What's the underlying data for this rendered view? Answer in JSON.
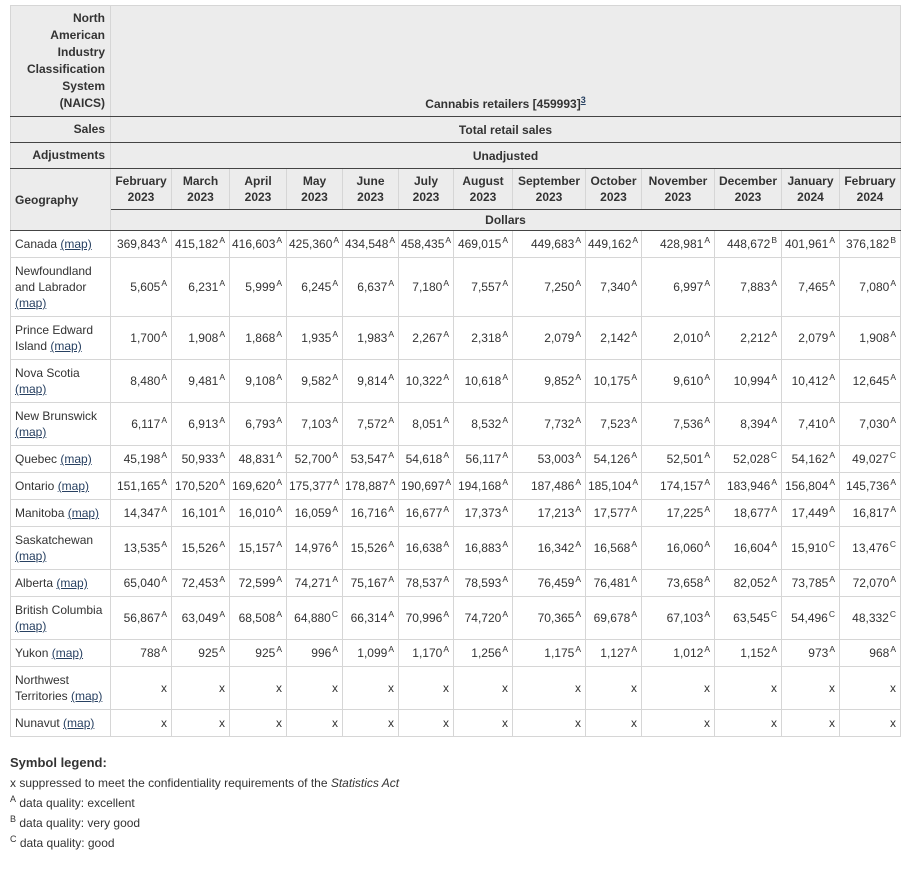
{
  "header": {
    "naics_label": "North American Industry Classification System (NAICS)",
    "naics_value": "Cannabis retailers [459993]",
    "naics_footnote": "3",
    "sales_label": "Sales",
    "sales_value": "Total retail sales",
    "adjustments_label": "Adjustments",
    "adjustments_value": "Unadjusted",
    "geography_label": "Geography",
    "unit_label": "Dollars",
    "columns": [
      {
        "month": "February",
        "year": "2023"
      },
      {
        "month": "March",
        "year": "2023"
      },
      {
        "month": "April",
        "year": "2023"
      },
      {
        "month": "May",
        "year": "2023"
      },
      {
        "month": "June",
        "year": "2023"
      },
      {
        "month": "July",
        "year": "2023"
      },
      {
        "month": "August",
        "year": "2023"
      },
      {
        "month": "September",
        "year": "2023"
      },
      {
        "month": "October",
        "year": "2023"
      },
      {
        "month": "November",
        "year": "2023"
      },
      {
        "month": "December",
        "year": "2023"
      },
      {
        "month": "January",
        "year": "2024"
      },
      {
        "month": "February",
        "year": "2024"
      }
    ]
  },
  "map_link_label": "(map)",
  "rows": [
    {
      "geo": "Canada",
      "cells": [
        [
          "369,843",
          "A"
        ],
        [
          "415,182",
          "A"
        ],
        [
          "416,603",
          "A"
        ],
        [
          "425,360",
          "A"
        ],
        [
          "434,548",
          "A"
        ],
        [
          "458,435",
          "A"
        ],
        [
          "469,015",
          "A"
        ],
        [
          "449,683",
          "A"
        ],
        [
          "449,162",
          "A"
        ],
        [
          "428,981",
          "A"
        ],
        [
          "448,672",
          "B"
        ],
        [
          "401,961",
          "A"
        ],
        [
          "376,182",
          "B"
        ]
      ]
    },
    {
      "geo": "Newfoundland and Labrador",
      "cells": [
        [
          "5,605",
          "A"
        ],
        [
          "6,231",
          "A"
        ],
        [
          "5,999",
          "A"
        ],
        [
          "6,245",
          "A"
        ],
        [
          "6,637",
          "A"
        ],
        [
          "7,180",
          "A"
        ],
        [
          "7,557",
          "A"
        ],
        [
          "7,250",
          "A"
        ],
        [
          "7,340",
          "A"
        ],
        [
          "6,997",
          "A"
        ],
        [
          "7,883",
          "A"
        ],
        [
          "7,465",
          "A"
        ],
        [
          "7,080",
          "A"
        ]
      ]
    },
    {
      "geo": "Prince Edward Island",
      "cells": [
        [
          "1,700",
          "A"
        ],
        [
          "1,908",
          "A"
        ],
        [
          "1,868",
          "A"
        ],
        [
          "1,935",
          "A"
        ],
        [
          "1,983",
          "A"
        ],
        [
          "2,267",
          "A"
        ],
        [
          "2,318",
          "A"
        ],
        [
          "2,079",
          "A"
        ],
        [
          "2,142",
          "A"
        ],
        [
          "2,010",
          "A"
        ],
        [
          "2,212",
          "A"
        ],
        [
          "2,079",
          "A"
        ],
        [
          "1,908",
          "A"
        ]
      ]
    },
    {
      "geo": "Nova Scotia",
      "cells": [
        [
          "8,480",
          "A"
        ],
        [
          "9,481",
          "A"
        ],
        [
          "9,108",
          "A"
        ],
        [
          "9,582",
          "A"
        ],
        [
          "9,814",
          "A"
        ],
        [
          "10,322",
          "A"
        ],
        [
          "10,618",
          "A"
        ],
        [
          "9,852",
          "A"
        ],
        [
          "10,175",
          "A"
        ],
        [
          "9,610",
          "A"
        ],
        [
          "10,994",
          "A"
        ],
        [
          "10,412",
          "A"
        ],
        [
          "12,645",
          "A"
        ]
      ]
    },
    {
      "geo": "New Brunswick",
      "cells": [
        [
          "6,117",
          "A"
        ],
        [
          "6,913",
          "A"
        ],
        [
          "6,793",
          "A"
        ],
        [
          "7,103",
          "A"
        ],
        [
          "7,572",
          "A"
        ],
        [
          "8,051",
          "A"
        ],
        [
          "8,532",
          "A"
        ],
        [
          "7,732",
          "A"
        ],
        [
          "7,523",
          "A"
        ],
        [
          "7,536",
          "A"
        ],
        [
          "8,394",
          "A"
        ],
        [
          "7,410",
          "A"
        ],
        [
          "7,030",
          "A"
        ]
      ]
    },
    {
      "geo": "Quebec",
      "cells": [
        [
          "45,198",
          "A"
        ],
        [
          "50,933",
          "A"
        ],
        [
          "48,831",
          "A"
        ],
        [
          "52,700",
          "A"
        ],
        [
          "53,547",
          "A"
        ],
        [
          "54,618",
          "A"
        ],
        [
          "56,117",
          "A"
        ],
        [
          "53,003",
          "A"
        ],
        [
          "54,126",
          "A"
        ],
        [
          "52,501",
          "A"
        ],
        [
          "52,028",
          "C"
        ],
        [
          "54,162",
          "A"
        ],
        [
          "49,027",
          "C"
        ]
      ]
    },
    {
      "geo": "Ontario",
      "cells": [
        [
          "151,165",
          "A"
        ],
        [
          "170,520",
          "A"
        ],
        [
          "169,620",
          "A"
        ],
        [
          "175,377",
          "A"
        ],
        [
          "178,887",
          "A"
        ],
        [
          "190,697",
          "A"
        ],
        [
          "194,168",
          "A"
        ],
        [
          "187,486",
          "A"
        ],
        [
          "185,104",
          "A"
        ],
        [
          "174,157",
          "A"
        ],
        [
          "183,946",
          "A"
        ],
        [
          "156,804",
          "A"
        ],
        [
          "145,736",
          "A"
        ]
      ]
    },
    {
      "geo": "Manitoba",
      "cells": [
        [
          "14,347",
          "A"
        ],
        [
          "16,101",
          "A"
        ],
        [
          "16,010",
          "A"
        ],
        [
          "16,059",
          "A"
        ],
        [
          "16,716",
          "A"
        ],
        [
          "16,677",
          "A"
        ],
        [
          "17,373",
          "A"
        ],
        [
          "17,213",
          "A"
        ],
        [
          "17,577",
          "A"
        ],
        [
          "17,225",
          "A"
        ],
        [
          "18,677",
          "A"
        ],
        [
          "17,449",
          "A"
        ],
        [
          "16,817",
          "A"
        ]
      ]
    },
    {
      "geo": "Saskatchewan",
      "cells": [
        [
          "13,535",
          "A"
        ],
        [
          "15,526",
          "A"
        ],
        [
          "15,157",
          "A"
        ],
        [
          "14,976",
          "A"
        ],
        [
          "15,526",
          "A"
        ],
        [
          "16,638",
          "A"
        ],
        [
          "16,883",
          "A"
        ],
        [
          "16,342",
          "A"
        ],
        [
          "16,568",
          "A"
        ],
        [
          "16,060",
          "A"
        ],
        [
          "16,604",
          "A"
        ],
        [
          "15,910",
          "C"
        ],
        [
          "13,476",
          "C"
        ]
      ]
    },
    {
      "geo": "Alberta",
      "cells": [
        [
          "65,040",
          "A"
        ],
        [
          "72,453",
          "A"
        ],
        [
          "72,599",
          "A"
        ],
        [
          "74,271",
          "A"
        ],
        [
          "75,167",
          "A"
        ],
        [
          "78,537",
          "A"
        ],
        [
          "78,593",
          "A"
        ],
        [
          "76,459",
          "A"
        ],
        [
          "76,481",
          "A"
        ],
        [
          "73,658",
          "A"
        ],
        [
          "82,052",
          "A"
        ],
        [
          "73,785",
          "A"
        ],
        [
          "72,070",
          "A"
        ]
      ]
    },
    {
      "geo": "British Columbia",
      "cells": [
        [
          "56,867",
          "A"
        ],
        [
          "63,049",
          "A"
        ],
        [
          "68,508",
          "A"
        ],
        [
          "64,880",
          "C"
        ],
        [
          "66,314",
          "A"
        ],
        [
          "70,996",
          "A"
        ],
        [
          "74,720",
          "A"
        ],
        [
          "70,365",
          "A"
        ],
        [
          "69,678",
          "A"
        ],
        [
          "67,103",
          "A"
        ],
        [
          "63,545",
          "C"
        ],
        [
          "54,496",
          "C"
        ],
        [
          "48,332",
          "C"
        ]
      ]
    },
    {
      "geo": "Yukon",
      "cells": [
        [
          "788",
          "A"
        ],
        [
          "925",
          "A"
        ],
        [
          "925",
          "A"
        ],
        [
          "996",
          "A"
        ],
        [
          "1,099",
          "A"
        ],
        [
          "1,170",
          "A"
        ],
        [
          "1,256",
          "A"
        ],
        [
          "1,175",
          "A"
        ],
        [
          "1,127",
          "A"
        ],
        [
          "1,012",
          "A"
        ],
        [
          "1,152",
          "A"
        ],
        [
          "973",
          "A"
        ],
        [
          "968",
          "A"
        ]
      ]
    },
    {
      "geo": "Northwest Territories",
      "cells": [
        [
          "x",
          ""
        ],
        [
          "x",
          ""
        ],
        [
          "x",
          ""
        ],
        [
          "x",
          ""
        ],
        [
          "x",
          ""
        ],
        [
          "x",
          ""
        ],
        [
          "x",
          ""
        ],
        [
          "x",
          ""
        ],
        [
          "x",
          ""
        ],
        [
          "x",
          ""
        ],
        [
          "x",
          ""
        ],
        [
          "x",
          ""
        ],
        [
          "x",
          ""
        ]
      ]
    },
    {
      "geo": "Nunavut",
      "cells": [
        [
          "x",
          ""
        ],
        [
          "x",
          ""
        ],
        [
          "x",
          ""
        ],
        [
          "x",
          ""
        ],
        [
          "x",
          ""
        ],
        [
          "x",
          ""
        ],
        [
          "x",
          ""
        ],
        [
          "x",
          ""
        ],
        [
          "x",
          ""
        ],
        [
          "x",
          ""
        ],
        [
          "x",
          ""
        ],
        [
          "x",
          ""
        ],
        [
          "x",
          ""
        ]
      ]
    }
  ],
  "legend": {
    "title": "Symbol legend:",
    "items": [
      {
        "symbol": "x",
        "superscript": false,
        "text": "suppressed to meet the confidentiality requirements of the ",
        "italic_text": "Statistics Act"
      },
      {
        "symbol": "A",
        "superscript": true,
        "text": "data quality: excellent",
        "italic_text": ""
      },
      {
        "symbol": "B",
        "superscript": true,
        "text": "data quality: very good",
        "italic_text": ""
      },
      {
        "symbol": "C",
        "superscript": true,
        "text": "data quality: good",
        "italic_text": ""
      }
    ]
  },
  "colors": {
    "header_bg": "#ececec",
    "border_light": "#d6d6d6",
    "border_dark": "#444444",
    "link": "#284162",
    "text": "#333333"
  }
}
